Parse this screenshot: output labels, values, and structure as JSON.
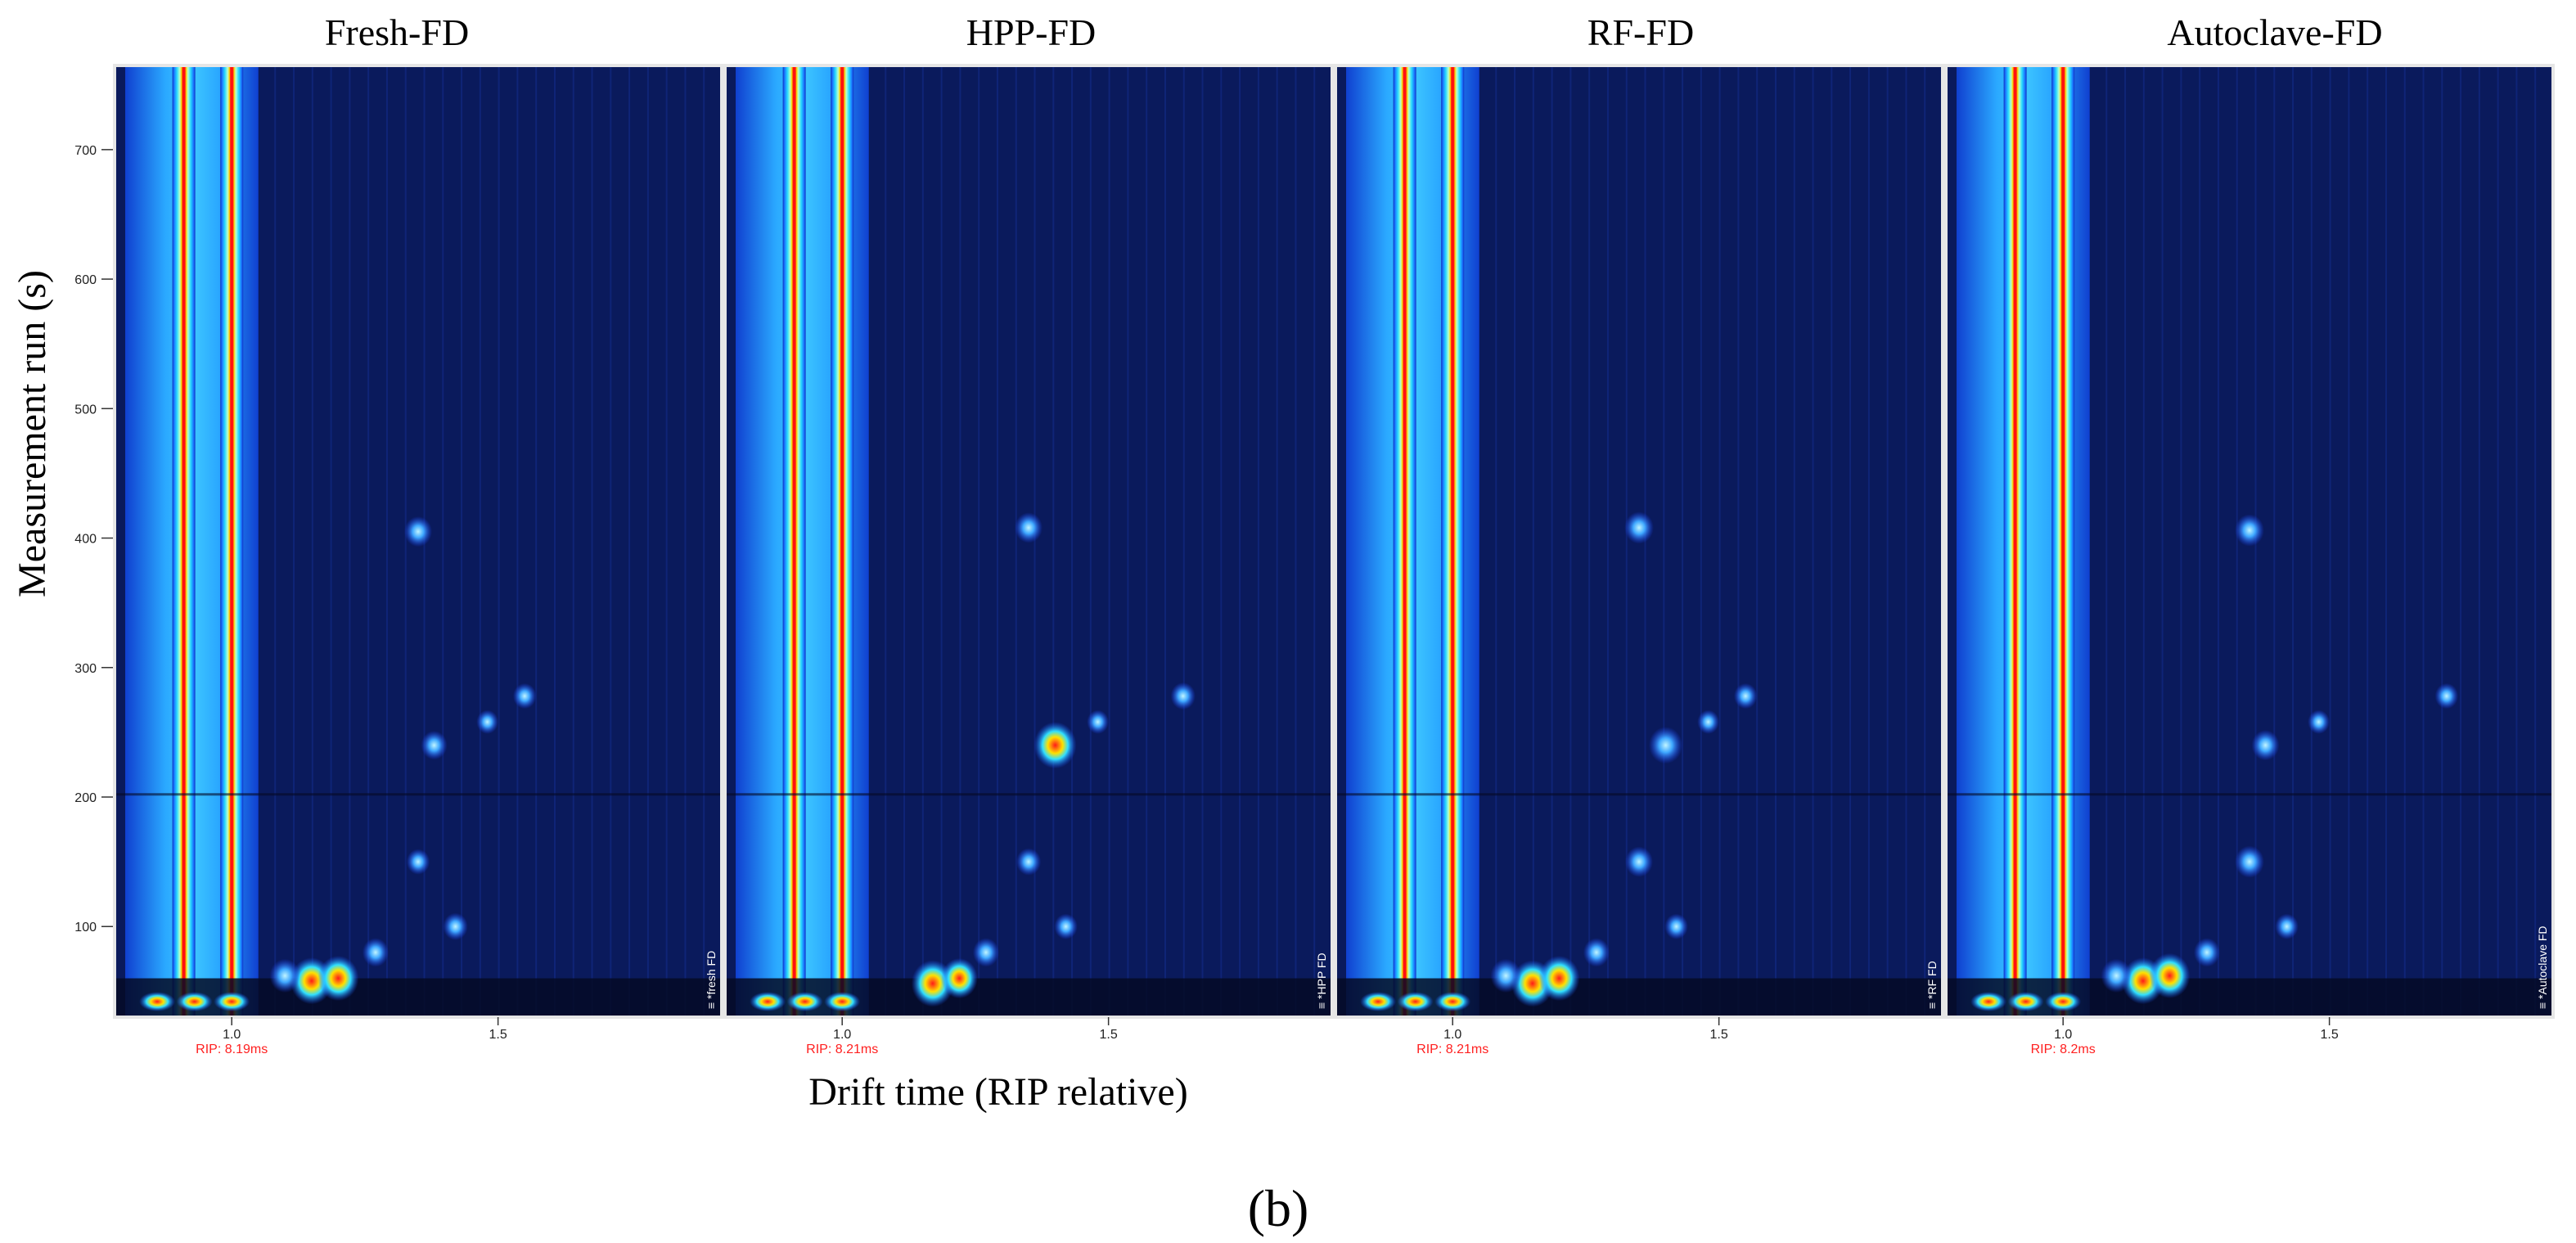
{
  "figure": {
    "caption": "(b)",
    "xlabel": "Drift time (RIP relative)",
    "ylabel": "Measurement run (s)",
    "colors": {
      "background": "#0a1a5c",
      "rip_label": "#ff2020",
      "separator": "#e6e6e6"
    }
  },
  "chart_data": [
    {
      "type": "heatmap",
      "title": "Fresh-FD",
      "sample_label": "≡ *fresh FD",
      "rip_label": "RIP: 8.19ms",
      "x_ticks": [
        "1.0",
        "1.5"
      ],
      "y_ticks": [
        "100",
        "200",
        "300",
        "400",
        "500",
        "600",
        "700"
      ],
      "xlim": [
        0.78,
        1.92
      ],
      "ylim": [
        30,
        765
      ],
      "peaks": [
        {
          "x": 1.35,
          "y": 405,
          "intensity": 0.5
        },
        {
          "x": 1.38,
          "y": 240,
          "intensity": 0.45
        },
        {
          "x": 1.35,
          "y": 150,
          "intensity": 0.35
        },
        {
          "x": 1.42,
          "y": 100,
          "intensity": 0.4
        },
        {
          "x": 1.48,
          "y": 258,
          "intensity": 0.3
        },
        {
          "x": 1.55,
          "y": 278,
          "intensity": 0.35
        },
        {
          "x": 1.15,
          "y": 58,
          "intensity": 1.0
        },
        {
          "x": 1.2,
          "y": 60,
          "intensity": 0.95
        },
        {
          "x": 1.1,
          "y": 62,
          "intensity": 0.6
        },
        {
          "x": 1.27,
          "y": 80,
          "intensity": 0.45
        }
      ]
    },
    {
      "type": "heatmap",
      "title": "HPP-FD",
      "sample_label": "≡ *HPP FD",
      "rip_label": "RIP: 8.21ms",
      "x_ticks": [
        "1.0",
        "1.5"
      ],
      "y_ticks": [
        "100",
        "200",
        "300",
        "400",
        "500",
        "600",
        "700"
      ],
      "xlim": [
        0.78,
        1.92
      ],
      "ylim": [
        30,
        765
      ],
      "peaks": [
        {
          "x": 1.35,
          "y": 408,
          "intensity": 0.5
        },
        {
          "x": 1.4,
          "y": 240,
          "intensity": 1.0
        },
        {
          "x": 1.35,
          "y": 150,
          "intensity": 0.4
        },
        {
          "x": 1.42,
          "y": 100,
          "intensity": 0.35
        },
        {
          "x": 1.48,
          "y": 258,
          "intensity": 0.3
        },
        {
          "x": 1.64,
          "y": 278,
          "intensity": 0.4
        },
        {
          "x": 1.17,
          "y": 56,
          "intensity": 1.0
        },
        {
          "x": 1.22,
          "y": 60,
          "intensity": 0.8
        },
        {
          "x": 1.27,
          "y": 80,
          "intensity": 0.45
        }
      ]
    },
    {
      "type": "heatmap",
      "title": "RF-FD",
      "sample_label": "≡ *RF FD",
      "rip_label": "RIP: 8.21ms",
      "x_ticks": [
        "1.0",
        "1.5"
      ],
      "y_ticks": [
        "100",
        "200",
        "300",
        "400",
        "500",
        "600",
        "700"
      ],
      "xlim": [
        0.78,
        1.92
      ],
      "ylim": [
        30,
        765
      ],
      "peaks": [
        {
          "x": 1.35,
          "y": 408,
          "intensity": 0.55
        },
        {
          "x": 1.4,
          "y": 240,
          "intensity": 0.7
        },
        {
          "x": 1.35,
          "y": 150,
          "intensity": 0.5
        },
        {
          "x": 1.42,
          "y": 100,
          "intensity": 0.35
        },
        {
          "x": 1.48,
          "y": 258,
          "intensity": 0.3
        },
        {
          "x": 1.55,
          "y": 278,
          "intensity": 0.35
        },
        {
          "x": 1.15,
          "y": 56,
          "intensity": 1.0
        },
        {
          "x": 1.2,
          "y": 60,
          "intensity": 0.95
        },
        {
          "x": 1.1,
          "y": 62,
          "intensity": 0.6
        },
        {
          "x": 1.27,
          "y": 80,
          "intensity": 0.45
        }
      ]
    },
    {
      "type": "heatmap",
      "title": "Autoclave-FD",
      "sample_label": "≡ *Autoclave FD",
      "rip_label": "RIP: 8.2ms",
      "x_ticks": [
        "1.0",
        "1.5"
      ],
      "y_ticks": [
        "100",
        "200",
        "300",
        "400",
        "500",
        "600",
        "700"
      ],
      "xlim": [
        0.78,
        1.92
      ],
      "ylim": [
        30,
        765
      ],
      "peaks": [
        {
          "x": 1.35,
          "y": 406,
          "intensity": 0.55
        },
        {
          "x": 1.38,
          "y": 240,
          "intensity": 0.5
        },
        {
          "x": 1.35,
          "y": 150,
          "intensity": 0.55
        },
        {
          "x": 1.42,
          "y": 100,
          "intensity": 0.35
        },
        {
          "x": 1.48,
          "y": 258,
          "intensity": 0.3
        },
        {
          "x": 1.72,
          "y": 278,
          "intensity": 0.35
        },
        {
          "x": 1.15,
          "y": 58,
          "intensity": 1.0
        },
        {
          "x": 1.2,
          "y": 62,
          "intensity": 0.95
        },
        {
          "x": 1.1,
          "y": 62,
          "intensity": 0.6
        },
        {
          "x": 1.27,
          "y": 80,
          "intensity": 0.45
        }
      ]
    }
  ]
}
